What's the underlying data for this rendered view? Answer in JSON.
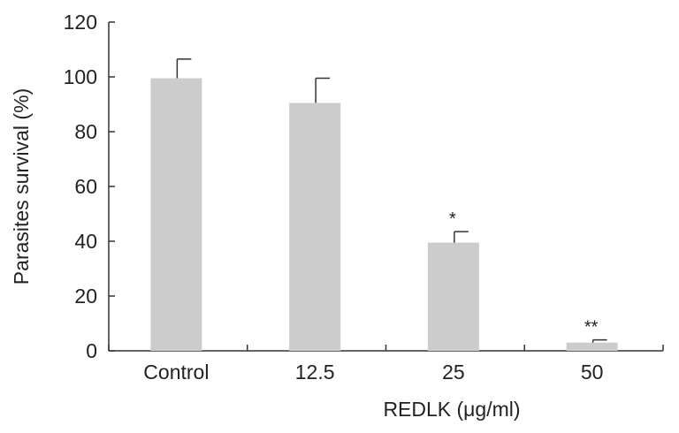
{
  "chart_data": {
    "type": "bar",
    "title": "",
    "xlabel": "REDLK (μg/ml)",
    "ylabel": "Parasites survival (%)",
    "categories": [
      "Control",
      "12.5",
      "25",
      "50"
    ],
    "values": [
      99.5,
      90.5,
      39.5,
      3
    ],
    "errors": [
      7,
      9,
      4,
      1
    ],
    "annotations": [
      "",
      "",
      "*",
      "**"
    ],
    "ylim": [
      0,
      120
    ],
    "yticks": [
      "0",
      "20",
      "40",
      "60",
      "80",
      "100",
      "120"
    ],
    "grid": false,
    "legend": "none",
    "bar_color": "#cccccc",
    "axis_color": "#333333"
  }
}
